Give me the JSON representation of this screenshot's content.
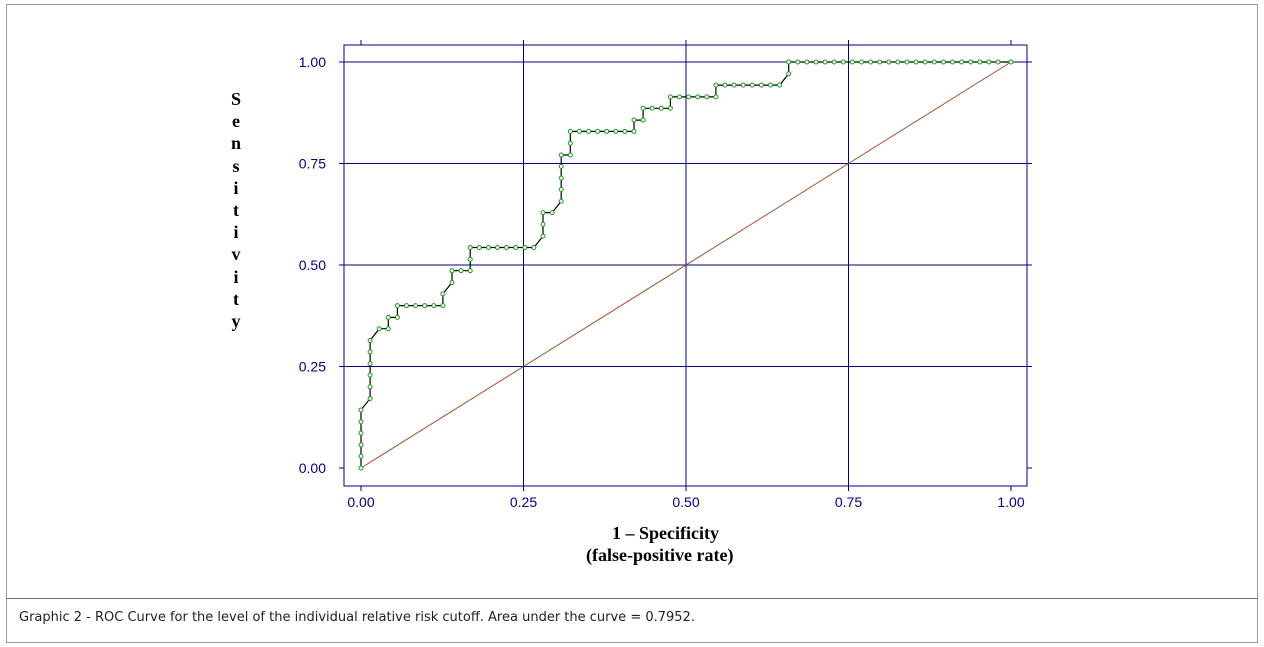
{
  "chart_data": {
    "type": "line",
    "xlabel": [
      "1 – Specificity",
      "(false-positive rate)"
    ],
    "ylabel": "Sensitivity",
    "xlim": [
      0,
      1
    ],
    "ylim": [
      0,
      1
    ],
    "x_ticks": [
      "0.00",
      "0.25",
      "0.50",
      "0.75",
      "1.00"
    ],
    "y_ticks": [
      "0.00",
      "0.25",
      "0.50",
      "0.75",
      "1.00"
    ],
    "grid": true,
    "series": [
      {
        "color": "#1a9a1a",
        "x": [
          0,
          0,
          0,
          0,
          0,
          0,
          0.014,
          0.014,
          0.014,
          0.014,
          0.014,
          0.014,
          0.028,
          0.042,
          0.042,
          0.056,
          0.056,
          0.07,
          0.084,
          0.098,
          0.112,
          0.126,
          0.126,
          0.14,
          0.14,
          0.154,
          0.168,
          0.168,
          0.168,
          0.182,
          0.196,
          0.21,
          0.224,
          0.238,
          0.252,
          0.266,
          0.28,
          0.28,
          0.28,
          0.294,
          0.308,
          0.308,
          0.308,
          0.308,
          0.308,
          0.322,
          0.322,
          0.322,
          0.336,
          0.35,
          0.364,
          0.378,
          0.392,
          0.406,
          0.42,
          0.42,
          0.434,
          0.434,
          0.448,
          0.462,
          0.476,
          0.476,
          0.49,
          0.504,
          0.518,
          0.532,
          0.546,
          0.546,
          0.56,
          0.574,
          0.588,
          0.602,
          0.616,
          0.63,
          0.644,
          0.658,
          0.658,
          0.672,
          0.686,
          0.7,
          0.714,
          0.728,
          0.742,
          0.756,
          0.77,
          0.784,
          0.798,
          0.812,
          0.826,
          0.84,
          0.854,
          0.868,
          0.882,
          0.896,
          0.91,
          0.924,
          0.938,
          0.952,
          0.966,
          0.98,
          1.0
        ],
        "y": [
          0,
          0.029,
          0.057,
          0.086,
          0.114,
          0.143,
          0.171,
          0.2,
          0.229,
          0.257,
          0.286,
          0.314,
          0.343,
          0.343,
          0.371,
          0.371,
          0.4,
          0.4,
          0.4,
          0.4,
          0.4,
          0.4,
          0.429,
          0.457,
          0.486,
          0.486,
          0.486,
          0.514,
          0.543,
          0.543,
          0.543,
          0.543,
          0.543,
          0.543,
          0.543,
          0.543,
          0.571,
          0.6,
          0.629,
          0.629,
          0.657,
          0.686,
          0.714,
          0.743,
          0.771,
          0.771,
          0.8,
          0.829,
          0.829,
          0.829,
          0.829,
          0.829,
          0.829,
          0.829,
          0.829,
          0.857,
          0.857,
          0.886,
          0.886,
          0.886,
          0.886,
          0.914,
          0.914,
          0.914,
          0.914,
          0.914,
          0.914,
          0.943,
          0.943,
          0.943,
          0.943,
          0.943,
          0.943,
          0.943,
          0.943,
          0.971,
          1.0,
          1.0,
          1.0,
          1.0,
          1.0,
          1.0,
          1.0,
          1.0,
          1.0,
          1.0,
          1.0,
          1.0,
          1.0,
          1.0,
          1.0,
          1.0,
          1.0,
          1.0,
          1.0,
          1.0,
          1.0,
          1.0,
          1.0,
          1.0,
          1.0
        ]
      },
      {
        "color": "#a0522d",
        "x": [
          0,
          1
        ],
        "y": [
          0,
          1
        ]
      }
    ],
    "colors": {
      "axis": "#000080",
      "grid": "#000080",
      "roc": "#1a9a1a",
      "roc_line": "#000000",
      "diagonal": "#a0522d"
    }
  },
  "caption": "Graphic 2 - ROC Curve for the level of the individual relative risk cutoff. Area under the curve = 0.7952."
}
